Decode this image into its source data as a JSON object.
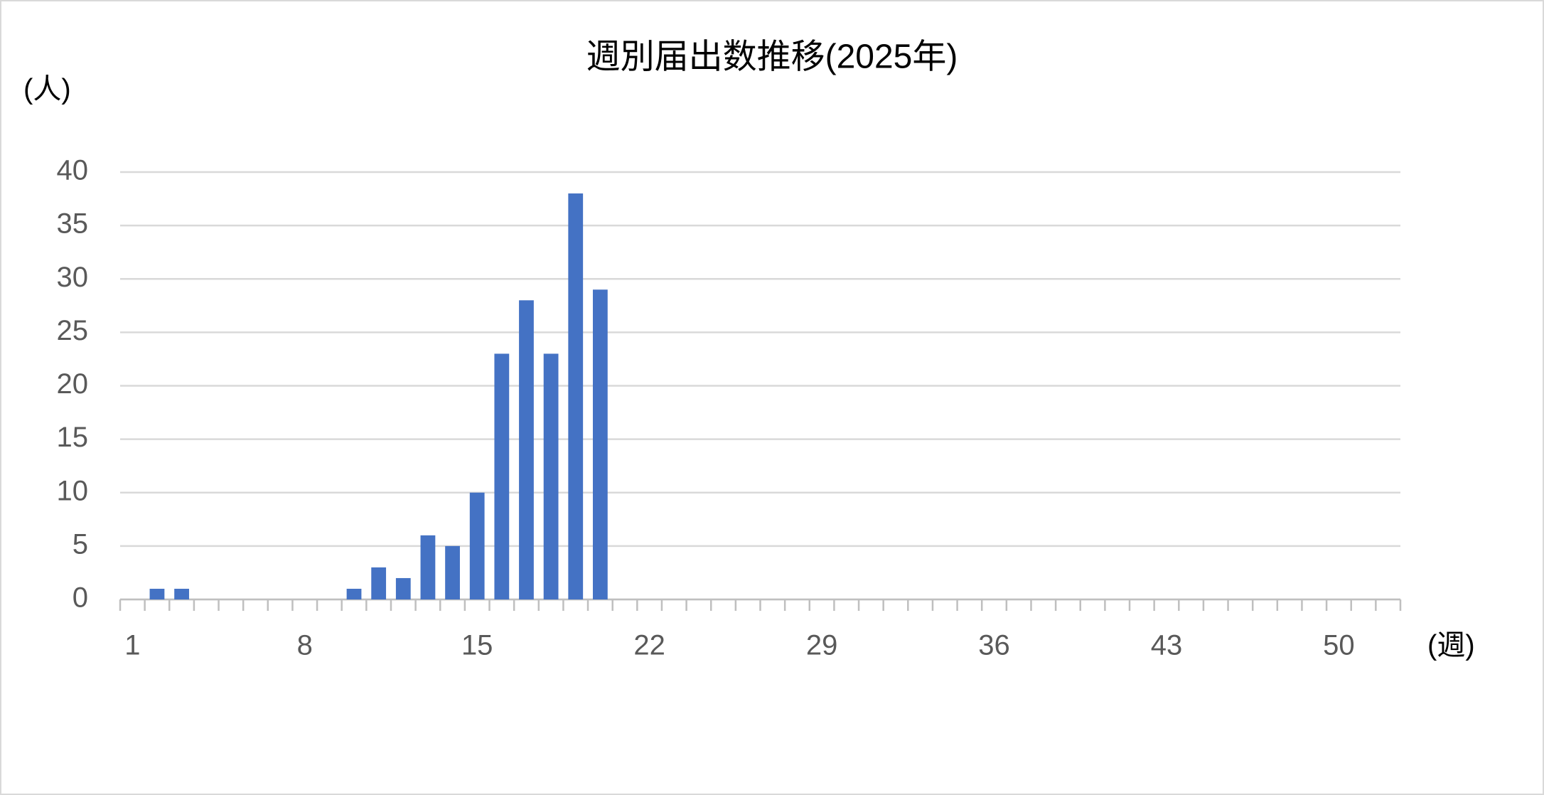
{
  "chart_data": {
    "type": "bar",
    "title": "週別届出数推移(2025年)",
    "y_label": "(人)",
    "x_label": "(週)",
    "categories": [
      "1",
      null,
      null,
      null,
      null,
      null,
      null,
      "8",
      null,
      null,
      null,
      null,
      null,
      null,
      "15",
      null,
      null,
      null,
      null,
      null,
      null,
      "22",
      null,
      null,
      null,
      null,
      null,
      null,
      "29",
      null,
      null,
      null,
      null,
      null,
      null,
      "36",
      null,
      null,
      null,
      null,
      null,
      null,
      "43",
      null,
      null,
      null,
      null,
      null,
      null,
      "50",
      null,
      null
    ],
    "values": [
      0,
      1,
      1,
      0,
      0,
      0,
      0,
      0,
      0,
      1,
      3,
      2,
      6,
      5,
      10,
      23,
      28,
      23,
      38,
      29,
      null,
      null,
      null,
      null,
      null,
      null,
      null,
      null,
      null,
      null,
      null,
      null,
      null,
      null,
      null,
      null,
      null,
      null,
      null,
      null,
      null,
      null,
      null,
      null,
      null,
      null,
      null,
      null,
      null,
      null,
      null,
      null
    ],
    "color": "#4472c4",
    "ylim": [
      0,
      40
    ],
    "yticks": [
      0,
      5,
      10,
      15,
      20,
      25,
      30,
      35,
      40
    ],
    "grid": true
  }
}
